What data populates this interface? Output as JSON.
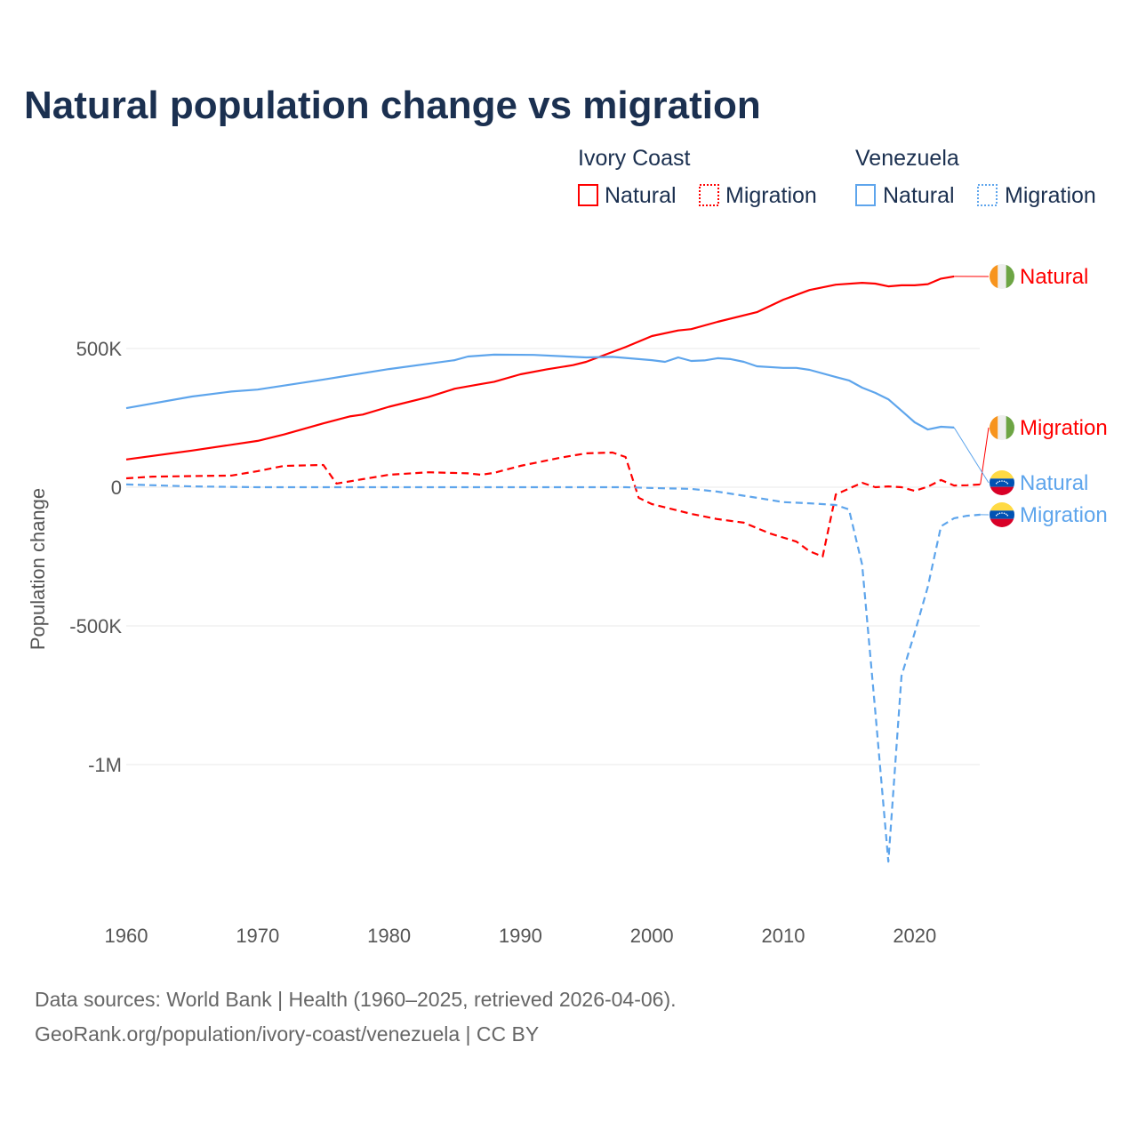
{
  "title": "Natural population change vs migration",
  "legend": {
    "groups": [
      {
        "name": "Ivory Coast",
        "items": [
          {
            "label": "Natural",
            "style": "solid",
            "color": "#ff0000"
          },
          {
            "label": "Migration",
            "style": "dotted",
            "color": "#ff0000"
          }
        ]
      },
      {
        "name": "Venezuela",
        "items": [
          {
            "label": "Natural",
            "style": "solid",
            "color": "#5ea5ec"
          },
          {
            "label": "Migration",
            "style": "dotted",
            "color": "#5ea5ec"
          }
        ]
      }
    ]
  },
  "footer": {
    "line1": "Data sources: World Bank | Health (1960–2025, retrieved 2026-04-06).",
    "line2": "GeoRank.org/population/ivory-coast/venezuela | CC BY"
  },
  "chart_data": {
    "type": "line",
    "title": "Natural population change vs migration",
    "xlabel": "",
    "ylabel": "Population change",
    "xlim": [
      1960,
      2025
    ],
    "ylim": [
      -1450000,
      780000
    ],
    "x_ticks": [
      1960,
      1970,
      1980,
      1990,
      2000,
      2010,
      2020
    ],
    "y_ticks": [
      {
        "value": 500000,
        "label": "500K"
      },
      {
        "value": 0,
        "label": "0"
      },
      {
        "value": -500000,
        "label": "-500K"
      },
      {
        "value": -1000000,
        "label": "-1M"
      }
    ],
    "grid": true,
    "series": [
      {
        "name": "Ivory Coast Natural",
        "end_label": "Natural",
        "country": "ivory-coast",
        "color": "#ff0000",
        "dash": false,
        "points": [
          [
            1960,
            100000
          ],
          [
            1965,
            132000
          ],
          [
            1970,
            167000
          ],
          [
            1972,
            190000
          ],
          [
            1975,
            230000
          ],
          [
            1977,
            255000
          ],
          [
            1978,
            262000
          ],
          [
            1980,
            290000
          ],
          [
            1983,
            325000
          ],
          [
            1985,
            355000
          ],
          [
            1987,
            372000
          ],
          [
            1988,
            380000
          ],
          [
            1990,
            407000
          ],
          [
            1992,
            425000
          ],
          [
            1994,
            440000
          ],
          [
            1995,
            452000
          ],
          [
            1998,
            505000
          ],
          [
            2000,
            545000
          ],
          [
            2002,
            565000
          ],
          [
            2003,
            570000
          ],
          [
            2005,
            596000
          ],
          [
            2008,
            631000
          ],
          [
            2010,
            676000
          ],
          [
            2012,
            711000
          ],
          [
            2014,
            730000
          ],
          [
            2016,
            737000
          ],
          [
            2017,
            734000
          ],
          [
            2018,
            724000
          ],
          [
            2019,
            728000
          ],
          [
            2020,
            728000
          ],
          [
            2021,
            732000
          ],
          [
            2022,
            752000
          ],
          [
            2023,
            760000
          ]
        ]
      },
      {
        "name": "Ivory Coast Migration",
        "end_label": "Migration",
        "country": "ivory-coast",
        "color": "#ff0000",
        "dash": true,
        "points": [
          [
            1960,
            32000
          ],
          [
            1962,
            38000
          ],
          [
            1968,
            42000
          ],
          [
            1970,
            58000
          ],
          [
            1972,
            77000
          ],
          [
            1975,
            80000
          ],
          [
            1976,
            13000
          ],
          [
            1980,
            45000
          ],
          [
            1983,
            54000
          ],
          [
            1986,
            50000
          ],
          [
            1987,
            45000
          ],
          [
            1988,
            52000
          ],
          [
            1990,
            77000
          ],
          [
            1993,
            106000
          ],
          [
            1995,
            122000
          ],
          [
            1997,
            125000
          ],
          [
            1998,
            109000
          ],
          [
            1999,
            -38000
          ],
          [
            2000,
            -61000
          ],
          [
            2003,
            -96000
          ],
          [
            2005,
            -115000
          ],
          [
            2007,
            -128000
          ],
          [
            2009,
            -167000
          ],
          [
            2011,
            -196000
          ],
          [
            2012,
            -231000
          ],
          [
            2013,
            -250000
          ],
          [
            2014,
            -26000
          ],
          [
            2016,
            16000
          ],
          [
            2017,
            0
          ],
          [
            2018,
            3000
          ],
          [
            2019,
            0
          ],
          [
            2020,
            -13000
          ],
          [
            2021,
            2000
          ],
          [
            2022,
            26000
          ],
          [
            2023,
            6000
          ],
          [
            2024,
            7000
          ],
          [
            2025,
            10000
          ]
        ]
      },
      {
        "name": "Venezuela Natural",
        "end_label": "Natural",
        "country": "venezuela",
        "color": "#5ea5ec",
        "dash": false,
        "points": [
          [
            1960,
            285000
          ],
          [
            1965,
            327000
          ],
          [
            1968,
            345000
          ],
          [
            1970,
            352000
          ],
          [
            1975,
            388000
          ],
          [
            1980,
            426000
          ],
          [
            1985,
            458000
          ],
          [
            1986,
            471000
          ],
          [
            1988,
            478000
          ],
          [
            1991,
            477000
          ],
          [
            1995,
            468000
          ],
          [
            1997,
            470000
          ],
          [
            2000,
            458000
          ],
          [
            2001,
            452000
          ],
          [
            2002,
            468000
          ],
          [
            2003,
            455000
          ],
          [
            2004,
            457000
          ],
          [
            2005,
            465000
          ],
          [
            2006,
            462000
          ],
          [
            2007,
            452000
          ],
          [
            2008,
            436000
          ],
          [
            2010,
            430000
          ],
          [
            2011,
            430000
          ],
          [
            2012,
            423000
          ],
          [
            2014,
            397000
          ],
          [
            2015,
            385000
          ],
          [
            2016,
            359000
          ],
          [
            2017,
            340000
          ],
          [
            2018,
            317000
          ],
          [
            2019,
            276000
          ],
          [
            2020,
            234000
          ],
          [
            2021,
            208000
          ],
          [
            2022,
            218000
          ],
          [
            2023,
            215000
          ]
        ]
      },
      {
        "name": "Venezuela Migration",
        "end_label": "Migration",
        "country": "venezuela",
        "color": "#5ea5ec",
        "dash": true,
        "points": [
          [
            1960,
            10000
          ],
          [
            1965,
            3000
          ],
          [
            1970,
            0
          ],
          [
            1998,
            0
          ],
          [
            2000,
            -3000
          ],
          [
            2003,
            -6000
          ],
          [
            2005,
            -16000
          ],
          [
            2008,
            -38000
          ],
          [
            2010,
            -54000
          ],
          [
            2012,
            -58000
          ],
          [
            2014,
            -64000
          ],
          [
            2015,
            -80000
          ],
          [
            2016,
            -279000
          ],
          [
            2017,
            -808000
          ],
          [
            2018,
            -1350000
          ],
          [
            2019,
            -680000
          ],
          [
            2020,
            -525000
          ],
          [
            2021,
            -359000
          ],
          [
            2022,
            -141000
          ],
          [
            2023,
            -112000
          ],
          [
            2024,
            -103000
          ],
          [
            2025,
            -99000
          ]
        ]
      }
    ]
  }
}
